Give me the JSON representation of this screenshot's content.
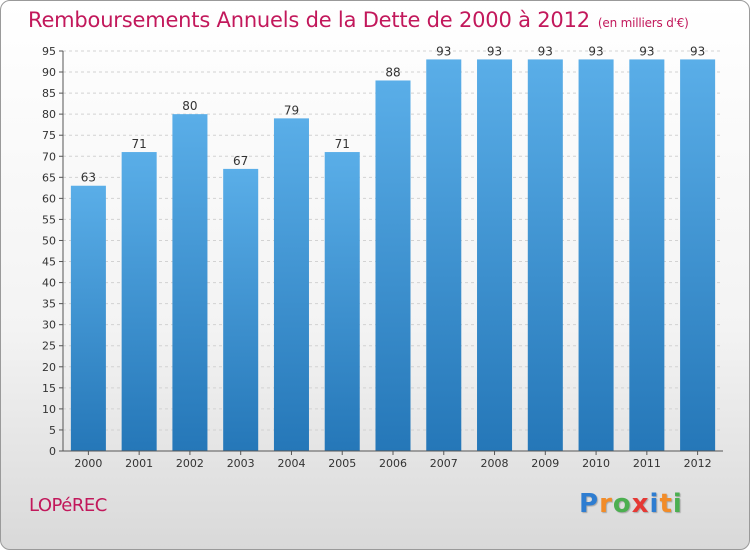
{
  "header": {
    "title": "Remboursements Annuels de la Dette de 2000 à 2012",
    "unit": "(en milliers d'€)"
  },
  "commune": "LOPéREC",
  "brand": {
    "letters": [
      {
        "char": "P",
        "color": "#2e7dd1"
      },
      {
        "char": "r",
        "color": "#f28c28"
      },
      {
        "char": "o",
        "color": "#4caf50"
      },
      {
        "char": "x",
        "color": "#e53935"
      },
      {
        "char": "i",
        "color": "#2e7dd1"
      },
      {
        "char": "t",
        "color": "#f28c28"
      },
      {
        "char": "i",
        "color": "#4caf50"
      }
    ]
  },
  "chart_data": {
    "type": "bar",
    "title": "Remboursements Annuels de la Dette de 2000 à 2012",
    "subtitle": "(en milliers d'€)",
    "categories": [
      "2000",
      "2001",
      "2002",
      "2003",
      "2004",
      "2005",
      "2006",
      "2007",
      "2008",
      "2009",
      "2010",
      "2011",
      "2012"
    ],
    "values": [
      63,
      71,
      80,
      67,
      79,
      71,
      88,
      93,
      93,
      93,
      93,
      93,
      93
    ],
    "ylim": [
      0,
      95
    ],
    "yticks": [
      0,
      5,
      10,
      15,
      20,
      25,
      30,
      35,
      40,
      45,
      50,
      55,
      60,
      65,
      70,
      75,
      80,
      85,
      90,
      95
    ],
    "grid": true,
    "bar_color_top": "#5aaee8",
    "bar_color_bottom": "#2577b8",
    "title_color": "#c2185b"
  }
}
